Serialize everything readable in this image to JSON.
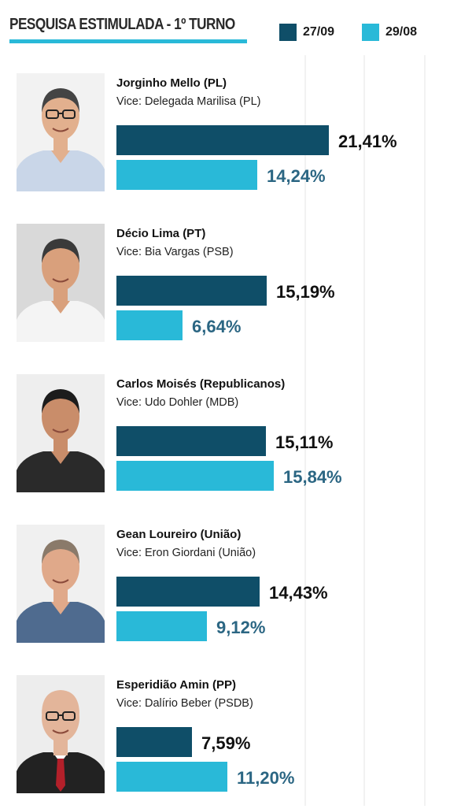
{
  "title": "PESQUISA ESTIMULADA - 1º TURNO",
  "legend": [
    {
      "label": "27/09",
      "color": "#0f4e68"
    },
    {
      "label": "29/08",
      "color": "#29b9d8"
    }
  ],
  "value_colors": {
    "27/09": "#111111",
    "29/08": "#2b6683"
  },
  "chart_data": {
    "type": "bar",
    "orientation": "horizontal",
    "title": "PESQUISA ESTIMULADA - 1º TURNO",
    "unit": "%",
    "series_names": [
      "27/09",
      "29/08"
    ],
    "candidates": [
      {
        "name": "Jorginho Mello (PL)",
        "vice": "Vice: Delegada Marilisa (PL)",
        "values": [
          21.41,
          14.24
        ],
        "labels": [
          "21,41%",
          "14,24%"
        ],
        "photo": "candidate-photo-man-glasses"
      },
      {
        "name": "Décio Lima (PT)",
        "vice": "Vice: Bia Vargas (PSB)",
        "values": [
          15.19,
          6.64
        ],
        "labels": [
          "15,19%",
          "6,64%"
        ],
        "photo": "candidate-photo-man-microphone"
      },
      {
        "name": "Carlos Moisés (Republicanos)",
        "vice": "Vice: Udo Dohler (MDB)",
        "values": [
          15.11,
          15.84
        ],
        "labels": [
          "15,11%",
          "15,84%"
        ],
        "photo": "candidate-photo-man-dark-jacket"
      },
      {
        "name": "Gean Loureiro (União)",
        "vice": "Vice: Eron Giordani (União)",
        "values": [
          14.43,
          9.12
        ],
        "labels": [
          "14,43%",
          "9,12%"
        ],
        "photo": "candidate-photo-man-smiling"
      },
      {
        "name": "Esperidião Amin (PP)",
        "vice": "Vice: Dalírio Beber (PSDB)",
        "values": [
          7.59,
          11.2
        ],
        "labels": [
          "7,59%",
          "11,20%"
        ],
        "photo": "candidate-photo-man-suit-tie"
      }
    ]
  }
}
